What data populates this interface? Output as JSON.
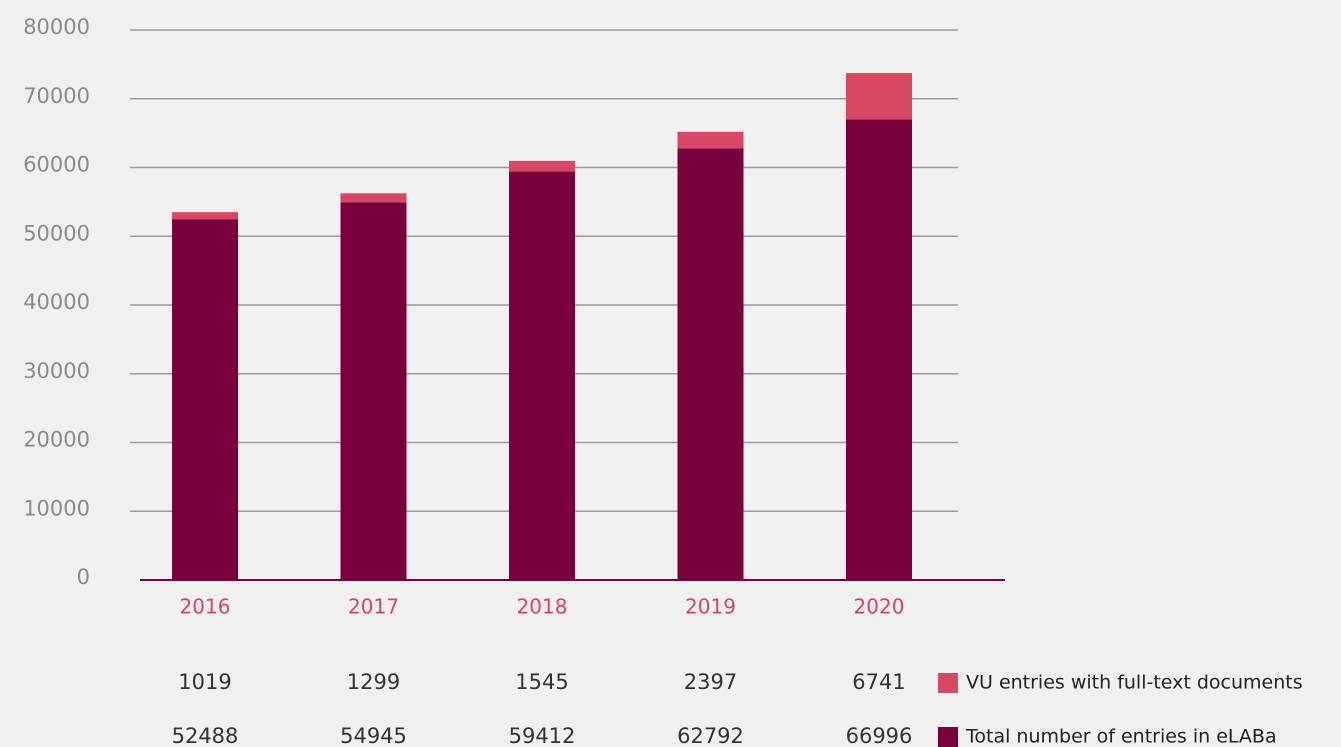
{
  "chart_data": {
    "type": "stacked_bar",
    "categories": [
      "2016",
      "2017",
      "2018",
      "2019",
      "2020"
    ],
    "series": [
      {
        "name": "Total number of entries in eLABa",
        "color": "#7a003c",
        "values": [
          52488,
          54945,
          59412,
          62792,
          66996
        ]
      },
      {
        "name": "VU entries with full-text documents",
        "color": "#d84864",
        "values": [
          1019,
          1299,
          1545,
          2397,
          6741
        ]
      }
    ],
    "ylim": [
      0,
      80000
    ],
    "yticks": [
      0,
      10000,
      20000,
      30000,
      40000,
      50000,
      60000,
      70000,
      80000
    ],
    "grid": true
  }
}
